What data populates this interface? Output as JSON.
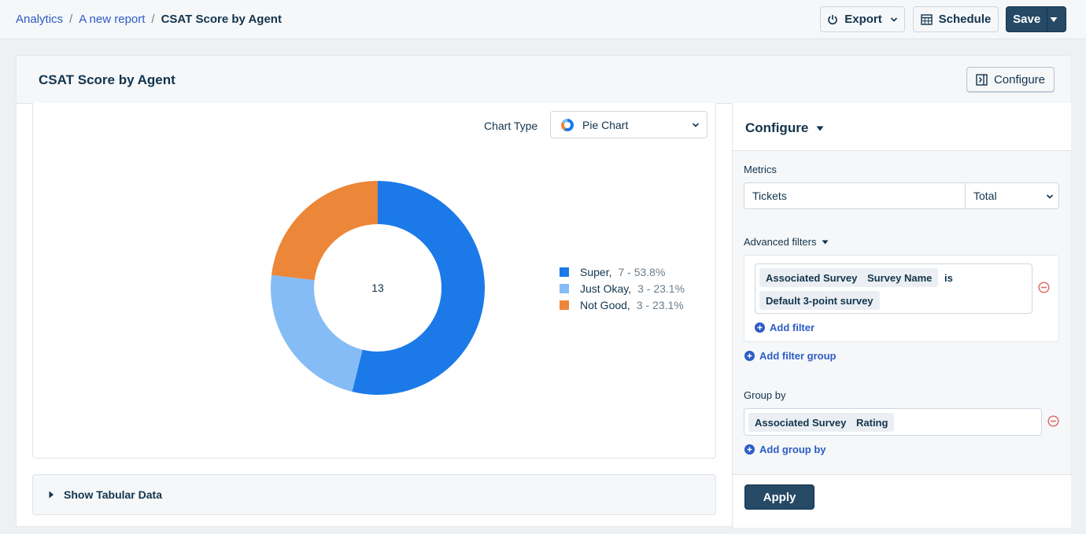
{
  "breadcrumb": {
    "items": [
      "Analytics",
      "A new report"
    ],
    "separator": "/",
    "current": "CSAT Score by Agent"
  },
  "toolbar": {
    "export_label": "Export",
    "schedule_label": "Schedule",
    "save_label": "Save"
  },
  "card": {
    "title": "CSAT Score by Agent",
    "configure_label": "Configure"
  },
  "chart_controls": {
    "chart_type_label": "Chart Type",
    "chart_type_value": "Pie Chart"
  },
  "chart_data": {
    "type": "pie",
    "variant": "donut",
    "center_label": "13",
    "slices": [
      {
        "name": "Super,",
        "value": 7,
        "display": "7 - 53.8%",
        "color": "#1b7ae8"
      },
      {
        "name": "Just Okay,",
        "value": 3,
        "display": "3 - 23.1%",
        "color": "#85bcf5"
      },
      {
        "name": "Not Good,",
        "value": 3,
        "display": "3 - 23.1%",
        "color": "#ec8638"
      }
    ],
    "legend_position": "right"
  },
  "tabular": {
    "label": "Show Tabular Data"
  },
  "configure_panel": {
    "title": "Configure",
    "metrics_label": "Metrics",
    "metric_value": "Tickets",
    "metric_aggregation": "Total",
    "advanced_filters_label": "Advanced filters",
    "filter": {
      "chip_field": "Associated Survey",
      "chip_subfield": "Survey Name",
      "operator": "is",
      "chip_value": "Default 3-point survey"
    },
    "add_filter_label": "Add filter",
    "add_filter_group_label": "Add filter group",
    "group_by_label": "Group by",
    "group_by_chips": [
      "Associated Survey",
      "Rating"
    ],
    "add_group_by_label": "Add group by",
    "apply_label": "Apply"
  },
  "colors": {
    "primary_dark": "#264966",
    "link": "#2c5cc5",
    "remove": "#e0655f"
  }
}
